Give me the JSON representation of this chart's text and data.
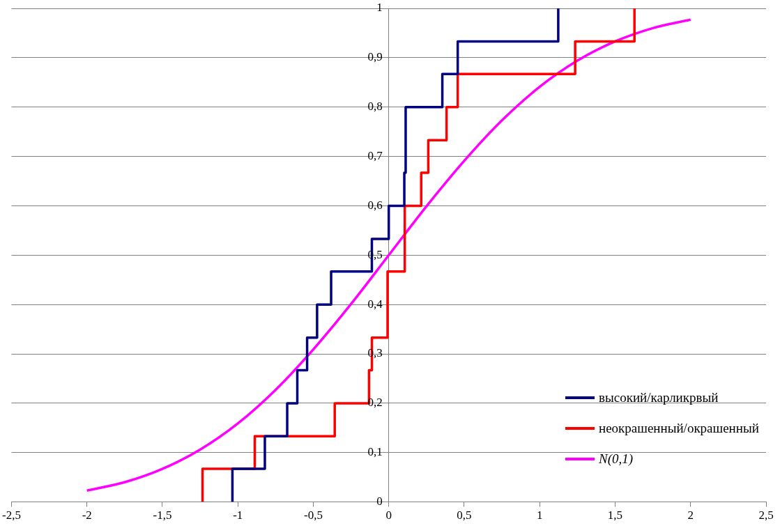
{
  "chart_data": {
    "type": "step",
    "xlim": [
      -2.5,
      2.5
    ],
    "ylim": [
      0,
      1
    ],
    "xticks": [
      {
        "value": -2.5,
        "label": "-2,5"
      },
      -2,
      {
        "value": -1.5,
        "label": "-1,5"
      },
      -1,
      {
        "value": -0.5,
        "label": "-0,5"
      },
      0,
      {
        "value": 0.5,
        "label": "0,5"
      },
      1,
      {
        "value": 1.5,
        "label": "1,5"
      },
      2,
      {
        "value": 2.5,
        "label": "2,5"
      }
    ],
    "yticks": [
      0,
      {
        "value": 0.1,
        "label": "0,1"
      },
      {
        "value": 0.2,
        "label": "0,2"
      },
      {
        "value": 0.3,
        "label": "0,3"
      },
      {
        "value": 0.4,
        "label": "0,4"
      },
      {
        "value": 0.5,
        "label": "0,5"
      },
      {
        "value": 0.6,
        "label": "0,6"
      },
      {
        "value": 0.7,
        "label": "0,7"
      },
      {
        "value": 0.8,
        "label": "0,8"
      },
      {
        "value": 0.9,
        "label": "0,9"
      },
      1
    ],
    "grid": "y",
    "legend": "bottom right",
    "marker": "none",
    "line_style": "solid",
    "series": [
      {
        "name": "высокий/карликрвый",
        "color": "#000080",
        "x": [
          -1.036,
          -1.036,
          -0.821,
          -0.673,
          -0.606,
          -0.541,
          -0.475,
          -0.382,
          -0.112,
          0,
          0.103,
          0.112,
          0.355,
          0.457,
          1.123
        ],
        "values": [
          0,
          0.067,
          0.133,
          0.2,
          0.267,
          0.333,
          0.4,
          0.467,
          0.533,
          0.6,
          0.667,
          0.8,
          0.867,
          0.933,
          1
        ]
      },
      {
        "name": "неокрашенный/окрашенный",
        "color": "#ff0000",
        "x": [
          -1.234,
          -1.234,
          -0.888,
          -0.358,
          -0.131,
          -0.112,
          -0.008,
          0.106,
          0.215,
          0.262,
          0.383,
          0.457,
          1.235,
          1.628
        ],
        "values": [
          0,
          0.067,
          0.133,
          0.2,
          0.267,
          0.333,
          0.467,
          0.6,
          0.667,
          0.733,
          0.8,
          0.867,
          0.933,
          1
        ]
      },
      {
        "name": "N(0,1)",
        "type": "line",
        "color": "#ff00ff",
        "x": [
          -2,
          -1.75,
          -1.5,
          -1.25,
          -1,
          -0.75,
          -0.5,
          -0.25,
          0,
          0.25,
          0.5,
          0.75,
          1,
          1.25,
          1.5,
          1.75,
          2
        ],
        "values": [
          0.023,
          0.04,
          0.067,
          0.106,
          0.159,
          0.227,
          0.309,
          0.401,
          0.5,
          0.599,
          0.691,
          0.773,
          0.841,
          0.894,
          0.933,
          0.96,
          0.977
        ]
      }
    ]
  }
}
